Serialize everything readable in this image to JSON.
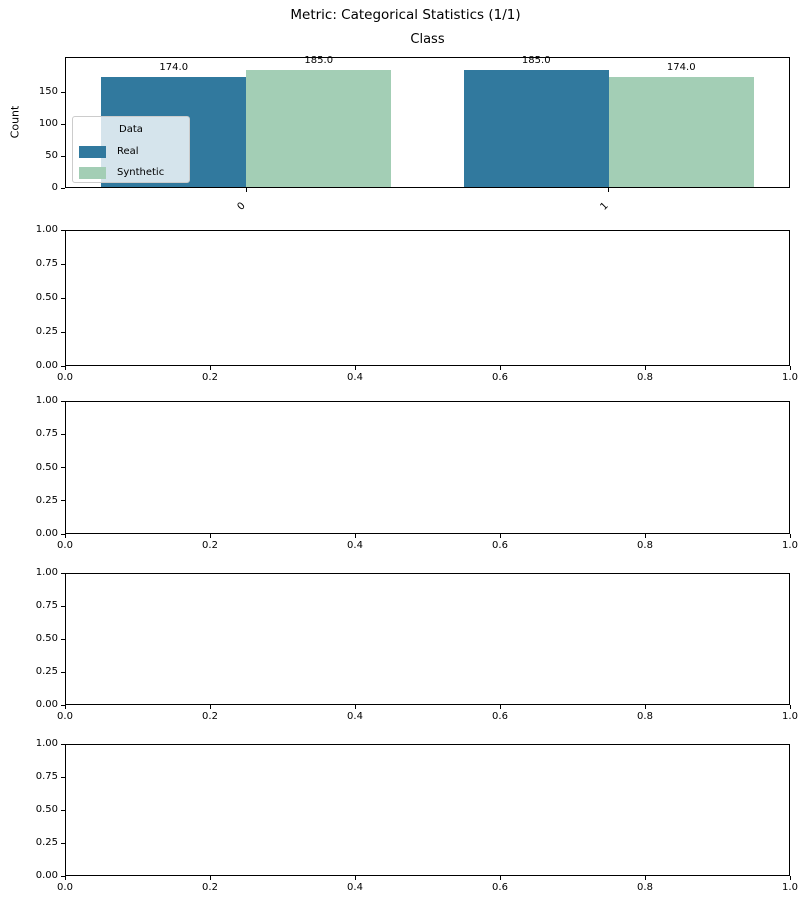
{
  "figure": {
    "background": "#ffffff",
    "axis_color": "#000000",
    "text_color": "#000000"
  },
  "chart_data": [
    {
      "type": "bar",
      "suptitle": "Metric: Categorical Statistics (1/1)",
      "title": "Class",
      "xlabel": "",
      "ylabel": "Count",
      "categories": [
        "0",
        "1"
      ],
      "series": [
        {
          "name": "Real",
          "color": "#31799E",
          "values": [
            174.0,
            185.0
          ],
          "labels": [
            "174.0",
            "185.0"
          ]
        },
        {
          "name": "Synthetic",
          "color": "#A3CEB5",
          "values": [
            185.0,
            174.0
          ],
          "labels": [
            "185.0",
            "174.0"
          ]
        }
      ],
      "legend": {
        "title": "Data",
        "location": "center left",
        "facecolor": "rgba(255,255,255,0.8)",
        "edgecolor": "#cccccc"
      },
      "yticks": [
        0,
        50,
        100,
        150
      ],
      "yticklabels": [
        "0",
        "50",
        "100",
        "150"
      ],
      "ylim": [
        0,
        204.7
      ],
      "xlim": [
        -0.5,
        1.5
      ],
      "bar_width": 0.4,
      "xtick_rotation": 45,
      "grid": false
    },
    {
      "type": "empty",
      "yticks": [
        "0.00",
        "0.25",
        "0.50",
        "0.75",
        "1.00"
      ],
      "xticks": [
        "0.0",
        "0.2",
        "0.4",
        "0.6",
        "0.8",
        "1.0"
      ],
      "xlim": [
        0,
        1
      ],
      "ylim": [
        0,
        1
      ],
      "grid": false
    },
    {
      "type": "empty",
      "yticks": [
        "0.00",
        "0.25",
        "0.50",
        "0.75",
        "1.00"
      ],
      "xticks": [
        "0.0",
        "0.2",
        "0.4",
        "0.6",
        "0.8",
        "1.0"
      ],
      "xlim": [
        0,
        1
      ],
      "ylim": [
        0,
        1
      ],
      "grid": false
    },
    {
      "type": "empty",
      "yticks": [
        "0.00",
        "0.25",
        "0.50",
        "0.75",
        "1.00"
      ],
      "xticks": [
        "0.0",
        "0.2",
        "0.4",
        "0.6",
        "0.8",
        "1.0"
      ],
      "xlim": [
        0,
        1
      ],
      "ylim": [
        0,
        1
      ],
      "grid": false
    },
    {
      "type": "empty",
      "yticks": [
        "0.00",
        "0.25",
        "0.50",
        "0.75",
        "1.00"
      ],
      "xticks": [
        "0.0",
        "0.2",
        "0.4",
        "0.6",
        "0.8",
        "1.0"
      ],
      "xlim": [
        0,
        1
      ],
      "ylim": [
        0,
        1
      ],
      "grid": false
    }
  ]
}
